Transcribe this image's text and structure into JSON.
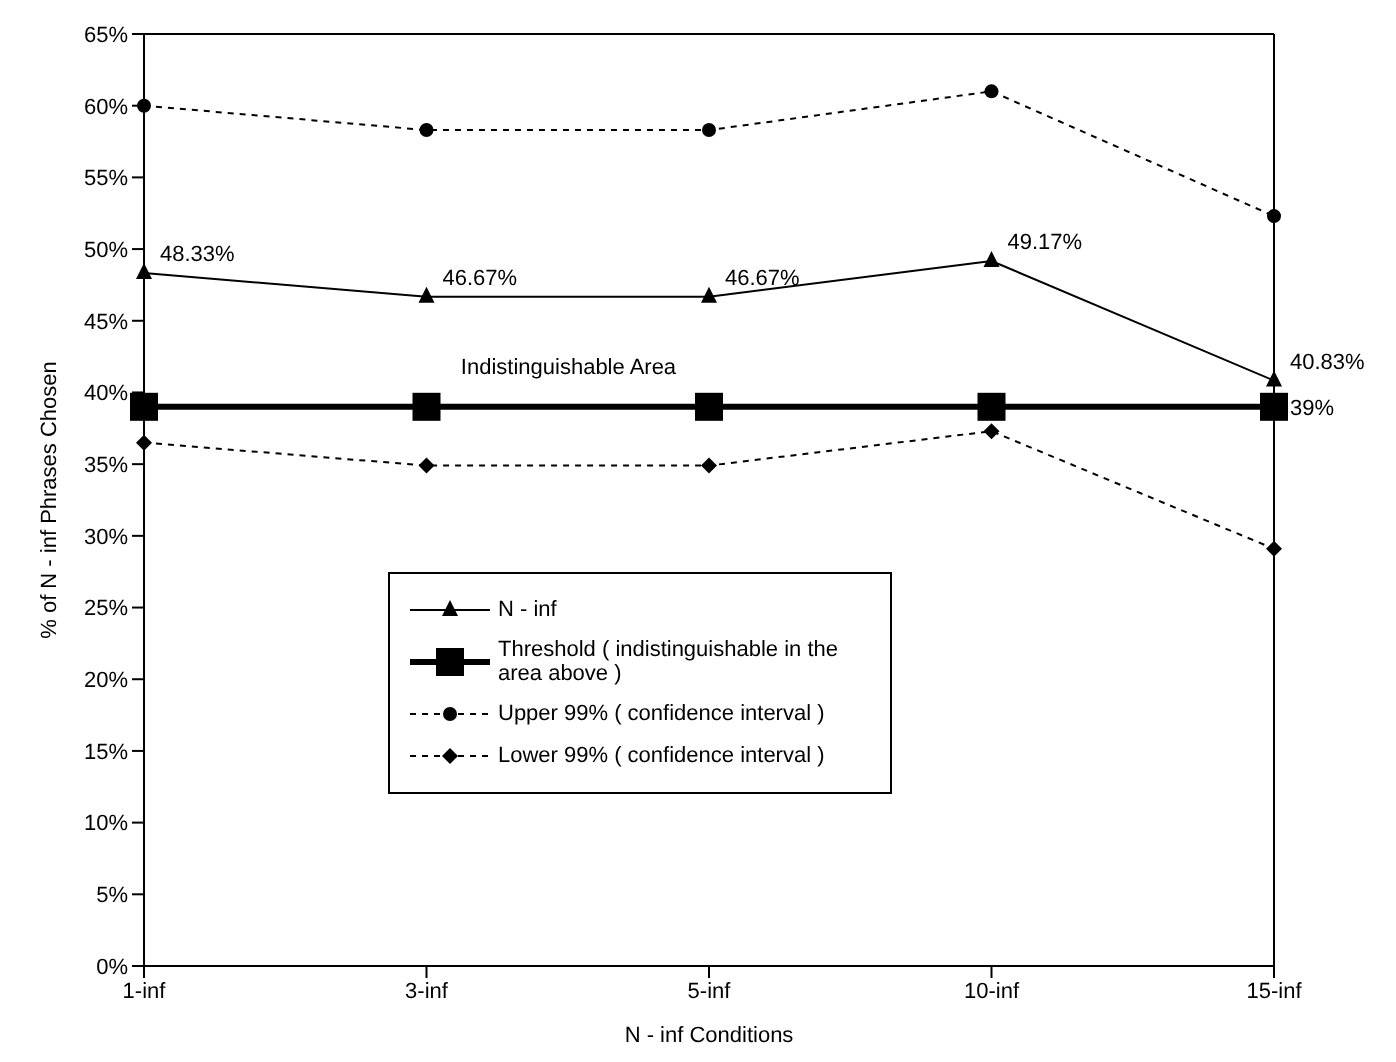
{
  "chart_data": {
    "type": "line",
    "xlabel": "N - inf  Conditions",
    "ylabel": "% of N - inf  Phrases  Chosen",
    "categories": [
      "1-inf",
      "3-inf",
      "5-inf",
      "10-inf",
      "15-inf"
    ],
    "series": [
      {
        "name": "N - inf",
        "color": "#000000",
        "marker": "triangle",
        "line_style": "solid",
        "values": [
          48.33,
          46.67,
          46.67,
          49.17,
          40.83
        ],
        "value_labels": [
          "48.33%",
          "46.67%",
          "46.67%",
          "49.17%",
          "40.83%"
        ]
      },
      {
        "name": "Threshold ( indistinguishable in the area above )",
        "color": "#000000",
        "marker": "square",
        "line_style": "solid",
        "values": [
          39,
          39,
          39,
          39,
          39
        ],
        "value_labels": [
          null,
          null,
          null,
          null,
          "39%"
        ]
      },
      {
        "name": "Upper 99% ( confidence interval )",
        "color": "#000000",
        "marker": "circle",
        "line_style": "dotted",
        "values": [
          60,
          58.3,
          58.3,
          61,
          52.3
        ]
      },
      {
        "name": "Lower 99% ( confidence interval )",
        "color": "#000000",
        "marker": "diamond",
        "line_style": "dotted",
        "values": [
          36.5,
          34.9,
          34.9,
          37.3,
          29.1
        ]
      }
    ],
    "annotations": [
      "Indistinguishable Area"
    ],
    "ylim": [
      0,
      65
    ],
    "yticks": [
      {
        "value": 0,
        "label": "0%"
      },
      {
        "value": 5,
        "label": "5%"
      },
      {
        "value": 10,
        "label": "10%"
      },
      {
        "value": 15,
        "label": "15%"
      },
      {
        "value": 20,
        "label": "20%"
      },
      {
        "value": 25,
        "label": "25%"
      },
      {
        "value": 30,
        "label": "30%"
      },
      {
        "value": 35,
        "label": "35%"
      },
      {
        "value": 40,
        "label": "40%"
      },
      {
        "value": 45,
        "label": "45%"
      },
      {
        "value": 50,
        "label": "50%"
      },
      {
        "value": 55,
        "label": "55%"
      },
      {
        "value": 60,
        "label": "60%"
      },
      {
        "value": 65,
        "label": "65%"
      }
    ],
    "legend": "bottom left"
  }
}
